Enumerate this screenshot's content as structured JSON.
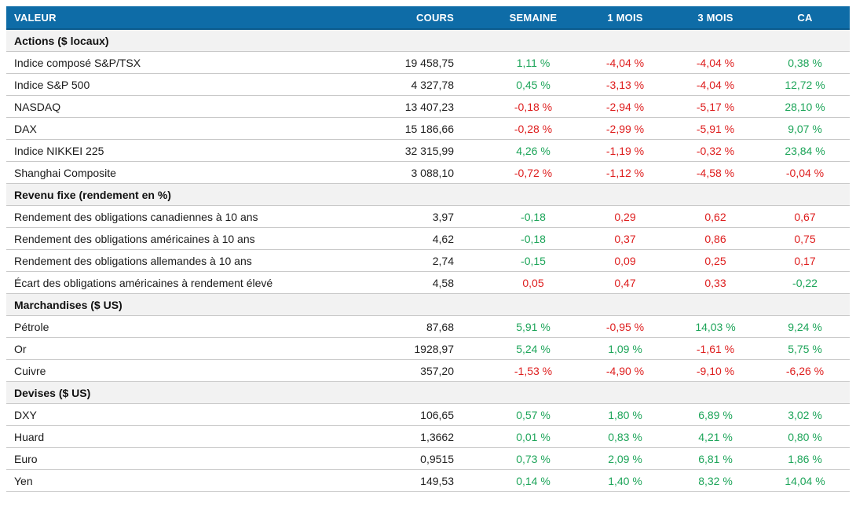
{
  "colors": {
    "header_bg": "#0e6ca7",
    "header_text": "#ffffff",
    "positive_green": "#1ea55a",
    "negative_red": "#de1e1e",
    "section_bg": "#f2f2f2",
    "row_divider": "#c9c9c9"
  },
  "chart_data": {
    "type": "table",
    "columns": [
      "VALEUR",
      "COURS",
      "SEMAINE",
      "1 MOIS",
      "3 MOIS",
      "CA"
    ],
    "sections": [
      {
        "title": "Actions ($ locaux)",
        "rows": [
          {
            "label": "Indice composé S&P/TSX",
            "cours": "19 458,75",
            "cells": [
              {
                "t": "1,11 %",
                "c": "g"
              },
              {
                "t": "-4,04 %",
                "c": "r"
              },
              {
                "t": "-4,04 %",
                "c": "r"
              },
              {
                "t": "0,38 %",
                "c": "g"
              }
            ]
          },
          {
            "label": "Indice S&P 500",
            "cours": "4 327,78",
            "cells": [
              {
                "t": "0,45 %",
                "c": "g"
              },
              {
                "t": "-3,13 %",
                "c": "r"
              },
              {
                "t": "-4,04 %",
                "c": "r"
              },
              {
                "t": "12,72 %",
                "c": "g"
              }
            ]
          },
          {
            "label": "NASDAQ",
            "cours": "13 407,23",
            "cells": [
              {
                "t": "-0,18 %",
                "c": "r"
              },
              {
                "t": "-2,94 %",
                "c": "r"
              },
              {
                "t": "-5,17 %",
                "c": "r"
              },
              {
                "t": "28,10 %",
                "c": "g"
              }
            ]
          },
          {
            "label": "DAX",
            "cours": "15 186,66",
            "cells": [
              {
                "t": "-0,28 %",
                "c": "r"
              },
              {
                "t": "-2,99 %",
                "c": "r"
              },
              {
                "t": "-5,91 %",
                "c": "r"
              },
              {
                "t": "9,07 %",
                "c": "g"
              }
            ]
          },
          {
            "label": "Indice NIKKEI 225",
            "cours": "32 315,99",
            "cells": [
              {
                "t": "4,26 %",
                "c": "g"
              },
              {
                "t": "-1,19 %",
                "c": "r"
              },
              {
                "t": "-0,32 %",
                "c": "r"
              },
              {
                "t": "23,84 %",
                "c": "g"
              }
            ]
          },
          {
            "label": "Shanghai Composite",
            "cours": "3 088,10",
            "cells": [
              {
                "t": "-0,72 %",
                "c": "r"
              },
              {
                "t": "-1,12 %",
                "c": "r"
              },
              {
                "t": "-4,58 %",
                "c": "r"
              },
              {
                "t": "-0,04 %",
                "c": "r"
              }
            ]
          }
        ]
      },
      {
        "title": "Revenu fixe (rendement en %)",
        "rows": [
          {
            "label": "Rendement des obligations canadiennes à 10 ans",
            "cours": "3,97",
            "cells": [
              {
                "t": "-0,18",
                "c": "g"
              },
              {
                "t": "0,29",
                "c": "r"
              },
              {
                "t": "0,62",
                "c": "r"
              },
              {
                "t": "0,67",
                "c": "r"
              }
            ]
          },
          {
            "label": "Rendement des obligations américaines à 10 ans",
            "cours": "4,62",
            "cells": [
              {
                "t": "-0,18",
                "c": "g"
              },
              {
                "t": "0,37",
                "c": "r"
              },
              {
                "t": "0,86",
                "c": "r"
              },
              {
                "t": "0,75",
                "c": "r"
              }
            ]
          },
          {
            "label": "Rendement des obligations allemandes à 10 ans",
            "cours": "2,74",
            "cells": [
              {
                "t": "-0,15",
                "c": "g"
              },
              {
                "t": "0,09",
                "c": "r"
              },
              {
                "t": "0,25",
                "c": "r"
              },
              {
                "t": "0,17",
                "c": "r"
              }
            ]
          },
          {
            "label": "Écart des obligations américaines à rendement élevé",
            "cours": "4,58",
            "cells": [
              {
                "t": "0,05",
                "c": "r"
              },
              {
                "t": "0,47",
                "c": "r"
              },
              {
                "t": "0,33",
                "c": "r"
              },
              {
                "t": "-0,22",
                "c": "g"
              }
            ]
          }
        ]
      },
      {
        "title": "Marchandises ($ US)",
        "rows": [
          {
            "label": "Pétrole",
            "cours": "87,68",
            "cells": [
              {
                "t": "5,91 %",
                "c": "g"
              },
              {
                "t": "-0,95 %",
                "c": "r"
              },
              {
                "t": "14,03 %",
                "c": "g"
              },
              {
                "t": "9,24 %",
                "c": "g"
              }
            ]
          },
          {
            "label": "Or",
            "cours": "1928,97",
            "cells": [
              {
                "t": "5,24 %",
                "c": "g"
              },
              {
                "t": "1,09 %",
                "c": "g"
              },
              {
                "t": "-1,61 %",
                "c": "r"
              },
              {
                "t": "5,75 %",
                "c": "g"
              }
            ]
          },
          {
            "label": "Cuivre",
            "cours": "357,20",
            "cells": [
              {
                "t": "-1,53 %",
                "c": "r"
              },
              {
                "t": "-4,90 %",
                "c": "r"
              },
              {
                "t": "-9,10 %",
                "c": "r"
              },
              {
                "t": "-6,26 %",
                "c": "r"
              }
            ]
          }
        ]
      },
      {
        "title": "Devises ($ US)",
        "rows": [
          {
            "label": "DXY",
            "cours": "106,65",
            "cells": [
              {
                "t": "0,57 %",
                "c": "g"
              },
              {
                "t": "1,80 %",
                "c": "g"
              },
              {
                "t": "6,89 %",
                "c": "g"
              },
              {
                "t": "3,02 %",
                "c": "g"
              }
            ]
          },
          {
            "label": "Huard",
            "cours": "1,3662",
            "cells": [
              {
                "t": "0,01 %",
                "c": "g"
              },
              {
                "t": "0,83 %",
                "c": "g"
              },
              {
                "t": "4,21 %",
                "c": "g"
              },
              {
                "t": "0,80 %",
                "c": "g"
              }
            ]
          },
          {
            "label": "Euro",
            "cours": "0,9515",
            "cells": [
              {
                "t": "0,73 %",
                "c": "g"
              },
              {
                "t": "2,09 %",
                "c": "g"
              },
              {
                "t": "6,81 %",
                "c": "g"
              },
              {
                "t": "1,86 %",
                "c": "g"
              }
            ]
          },
          {
            "label": "Yen",
            "cours": "149,53",
            "cells": [
              {
                "t": "0,14 %",
                "c": "g"
              },
              {
                "t": "1,40 %",
                "c": "g"
              },
              {
                "t": "8,32 %",
                "c": "g"
              },
              {
                "t": "14,04 %",
                "c": "g"
              }
            ]
          }
        ]
      }
    ]
  }
}
